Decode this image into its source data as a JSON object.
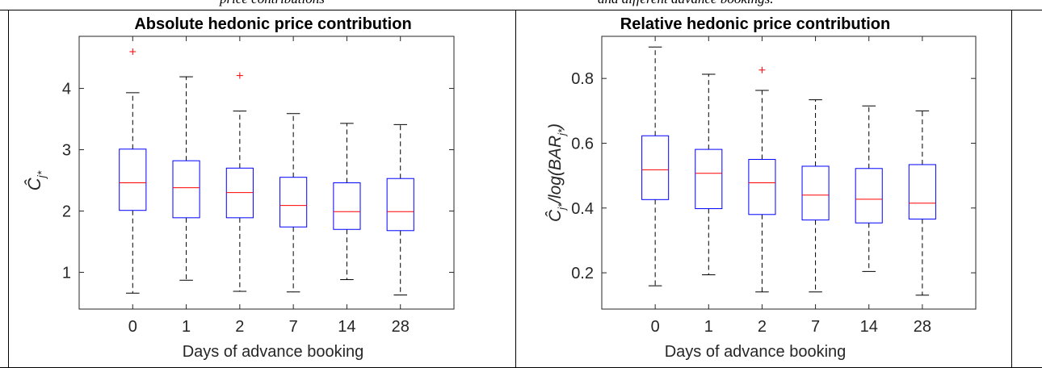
{
  "caption_fragments": [
    "price contributions",
    "and different advance bookings."
  ],
  "chart_data": [
    {
      "type": "box",
      "title": "Absolute hedonic price contribution",
      "xlabel": "Days of advance booking",
      "ylabel": "Ĉ_{j*}",
      "categories": [
        "0",
        "1",
        "2",
        "7",
        "14",
        "28"
      ],
      "ylim": [
        0.4,
        4.85
      ],
      "yticks": [
        1,
        2,
        3,
        4
      ],
      "boxes": [
        {
          "whisker_low": 0.66,
          "q1": 2.01,
          "median": 2.46,
          "q3": 3.01,
          "whisker_high": 3.93,
          "outliers": [
            4.6
          ]
        },
        {
          "whisker_low": 0.87,
          "q1": 1.89,
          "median": 2.38,
          "q3": 2.82,
          "whisker_high": 4.19,
          "outliers": []
        },
        {
          "whisker_low": 0.69,
          "q1": 1.89,
          "median": 2.3,
          "q3": 2.7,
          "whisker_high": 3.63,
          "outliers": [
            4.21
          ]
        },
        {
          "whisker_low": 0.68,
          "q1": 1.74,
          "median": 2.09,
          "q3": 2.55,
          "whisker_high": 3.59,
          "outliers": []
        },
        {
          "whisker_low": 0.88,
          "q1": 1.7,
          "median": 1.99,
          "q3": 2.46,
          "whisker_high": 3.43,
          "outliers": []
        },
        {
          "whisker_low": 0.63,
          "q1": 1.68,
          "median": 1.99,
          "q3": 2.53,
          "whisker_high": 3.41,
          "outliers": []
        }
      ],
      "colors": {
        "box": "#0000ff",
        "median": "#ff0000",
        "whisker": "#000000",
        "outlier": "#ff0000"
      }
    },
    {
      "type": "box",
      "title": "Relative hedonic price contribution",
      "xlabel": "Days of advance booking",
      "ylabel": "Ĉ_{j*}/log(BAR_{j*})",
      "categories": [
        "0",
        "1",
        "2",
        "7",
        "14",
        "28"
      ],
      "ylim": [
        0.088,
        0.93
      ],
      "yticks": [
        0.2,
        0.4,
        0.6,
        0.8
      ],
      "boxes": [
        {
          "whisker_low": 0.16,
          "q1": 0.426,
          "median": 0.518,
          "q3": 0.623,
          "whisker_high": 0.897,
          "outliers": []
        },
        {
          "whisker_low": 0.194,
          "q1": 0.398,
          "median": 0.507,
          "q3": 0.581,
          "whisker_high": 0.813,
          "outliers": []
        },
        {
          "whisker_low": 0.141,
          "q1": 0.38,
          "median": 0.478,
          "q3": 0.55,
          "whisker_high": 0.763,
          "outliers": [
            0.826
          ]
        },
        {
          "whisker_low": 0.141,
          "q1": 0.363,
          "median": 0.44,
          "q3": 0.529,
          "whisker_high": 0.734,
          "outliers": []
        },
        {
          "whisker_low": 0.204,
          "q1": 0.354,
          "median": 0.427,
          "q3": 0.522,
          "whisker_high": 0.715,
          "outliers": []
        },
        {
          "whisker_low": 0.131,
          "q1": 0.366,
          "median": 0.415,
          "q3": 0.534,
          "whisker_high": 0.7,
          "outliers": []
        }
      ],
      "colors": {
        "box": "#0000ff",
        "median": "#ff0000",
        "whisker": "#000000",
        "outlier": "#ff0000"
      }
    }
  ]
}
